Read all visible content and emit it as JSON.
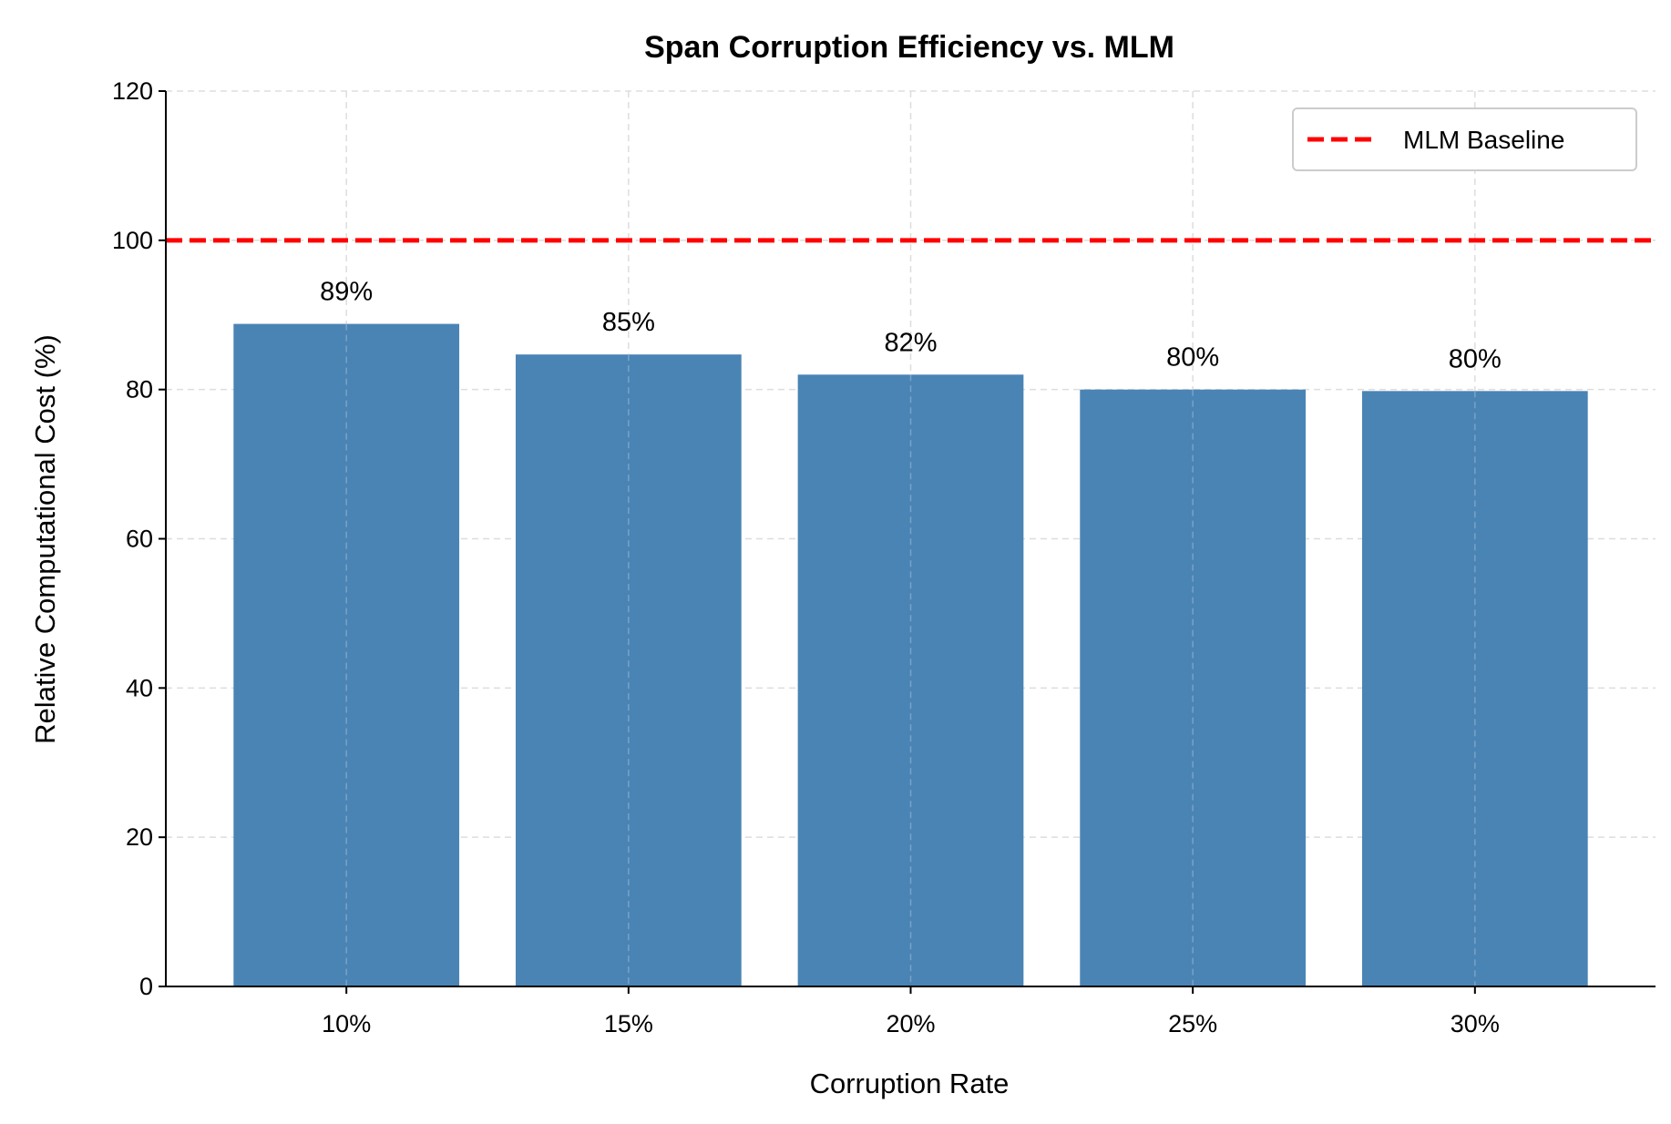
{
  "chart_data": {
    "type": "bar",
    "title": "Span Corruption Efficiency vs. MLM",
    "xlabel": "Corruption Rate",
    "ylabel": "Relative Computational Cost (%)",
    "categories": [
      "10%",
      "15%",
      "20%",
      "25%",
      "30%"
    ],
    "values": [
      88.8,
      84.7,
      82.0,
      80.0,
      79.8
    ],
    "data_labels": [
      "89%",
      "85%",
      "82%",
      "80%",
      "80%"
    ],
    "ylim": [
      0,
      120
    ],
    "yticks": [
      "0",
      "20",
      "40",
      "60",
      "80",
      "100",
      "120"
    ],
    "grid": true,
    "legend_placement": "top-right",
    "baseline": {
      "name": "MLM Baseline",
      "value": 100,
      "style": "dashed",
      "color": "#ff0000"
    },
    "colors": {
      "bar": "#4682b4",
      "baseline": "#ff0000"
    }
  }
}
